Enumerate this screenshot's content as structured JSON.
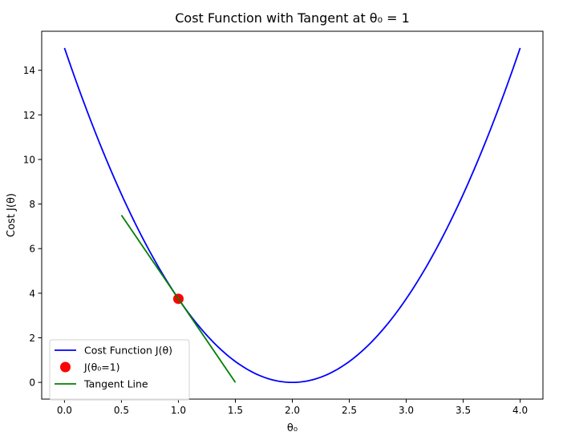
{
  "chart_data": {
    "type": "line",
    "title": "Cost Function with Tangent at θ₀ = 1",
    "xlabel": "θ₀",
    "ylabel": "Cost J(θ)",
    "xlim": [
      -0.2,
      4.2
    ],
    "ylim": [
      -0.75,
      15.75
    ],
    "xticks": [
      0.0,
      0.5,
      1.0,
      1.5,
      2.0,
      2.5,
      3.0,
      3.5,
      4.0
    ],
    "xtick_labels": [
      "0.0",
      "0.5",
      "1.0",
      "1.5",
      "2.0",
      "2.5",
      "3.0",
      "3.5",
      "4.0"
    ],
    "yticks": [
      0,
      2,
      4,
      6,
      8,
      10,
      12,
      14
    ],
    "ytick_labels": [
      "0",
      "2",
      "4",
      "6",
      "8",
      "10",
      "12",
      "14"
    ],
    "grid": false,
    "legend_position": "lower-left",
    "series": [
      {
        "name": "Cost Function J(θ)",
        "kind": "line",
        "color": "#0000ff",
        "function": "3.75 * (x - 2)^2",
        "x_range": [
          0.0,
          4.0
        ],
        "samples": 200
      },
      {
        "name": "J(θ₀=1)",
        "kind": "scatter",
        "color": "#ff0000",
        "points": [
          [
            1.0,
            3.75
          ]
        ]
      },
      {
        "name": "Tangent Line",
        "kind": "line",
        "color": "#008000",
        "points": [
          [
            0.5,
            7.5
          ],
          [
            1.5,
            0.0
          ]
        ]
      }
    ]
  }
}
